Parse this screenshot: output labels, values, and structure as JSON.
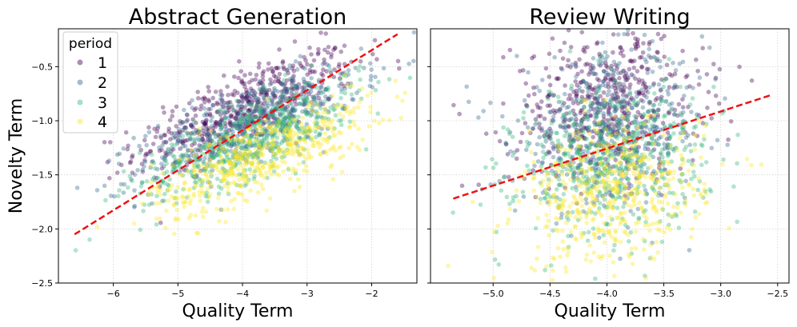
{
  "chart_data": [
    {
      "type": "scatter",
      "title": "Abstract Generation",
      "xlabel": "Quality Term",
      "ylabel": "Novelty Term",
      "xlim": [
        -6.85,
        -1.3
      ],
      "ylim": [
        -2.5,
        -0.15
      ],
      "xticks": [
        -6,
        -5,
        -4,
        -3,
        -2
      ],
      "xtick_labels": [
        "−6",
        "−5",
        "−4",
        "−3",
        "−2"
      ],
      "yticks": [
        -2.5,
        -2.0,
        -1.5,
        -1.0,
        -0.5
      ],
      "ytick_labels": [
        "−2.5",
        "−2.0",
        "−1.5",
        "−1.0",
        "−0.5"
      ],
      "grid": true,
      "legend": {
        "title": "period",
        "placement": "top-left",
        "entries": [
          "1",
          "2",
          "3",
          "4"
        ]
      },
      "series": [
        {
          "name": "1",
          "color": "#440154",
          "center": [
            -3.95,
            -0.88
          ],
          "spread": [
            0.85,
            0.27
          ],
          "correlation": 0.75
        },
        {
          "name": "2",
          "color": "#31688e",
          "center": [
            -3.9,
            -1.03
          ],
          "spread": [
            0.85,
            0.27
          ],
          "correlation": 0.75
        },
        {
          "name": "3",
          "color": "#35b779",
          "center": [
            -3.85,
            -1.17
          ],
          "spread": [
            0.85,
            0.27
          ],
          "correlation": 0.75
        },
        {
          "name": "4",
          "color": "#fde725",
          "center": [
            -3.7,
            -1.33
          ],
          "spread": [
            0.85,
            0.27
          ],
          "correlation": 0.75
        }
      ],
      "fit_line": {
        "x": [
          -6.6,
          -1.6
        ],
        "y": [
          -2.05,
          -0.2
        ],
        "color": "#ee1111"
      }
    },
    {
      "type": "scatter",
      "title": "Review Writing",
      "xlabel": "Quality Term",
      "xlim": [
        -5.55,
        -2.4
      ],
      "ylim": [
        -2.5,
        -0.15
      ],
      "xticks": [
        -5.0,
        -4.5,
        -4.0,
        -3.5,
        -3.0,
        -2.5
      ],
      "xtick_labels": [
        "−5.0",
        "−4.5",
        "−4.0",
        "−3.5",
        "−3.0",
        "−2.5"
      ],
      "yticks": [
        -2.5,
        -2.0,
        -1.5,
        -1.0,
        -0.5
      ],
      "grid": true,
      "series": [
        {
          "name": "1",
          "color": "#440154",
          "center": [
            -4.0,
            -0.85
          ],
          "spread": [
            0.42,
            0.35
          ],
          "correlation": 0.15
        },
        {
          "name": "2",
          "color": "#31688e",
          "center": [
            -3.97,
            -1.1
          ],
          "spread": [
            0.42,
            0.35
          ],
          "correlation": 0.15
        },
        {
          "name": "3",
          "color": "#35b779",
          "center": [
            -3.95,
            -1.35
          ],
          "spread": [
            0.42,
            0.35
          ],
          "correlation": 0.15
        },
        {
          "name": "4",
          "color": "#fde725",
          "center": [
            -3.95,
            -1.68
          ],
          "spread": [
            0.4,
            0.33
          ],
          "correlation": 0.15
        }
      ],
      "fit_line": {
        "x": [
          -5.35,
          -2.55
        ],
        "y": [
          -1.72,
          -0.76
        ],
        "color": "#ee1111"
      }
    }
  ]
}
